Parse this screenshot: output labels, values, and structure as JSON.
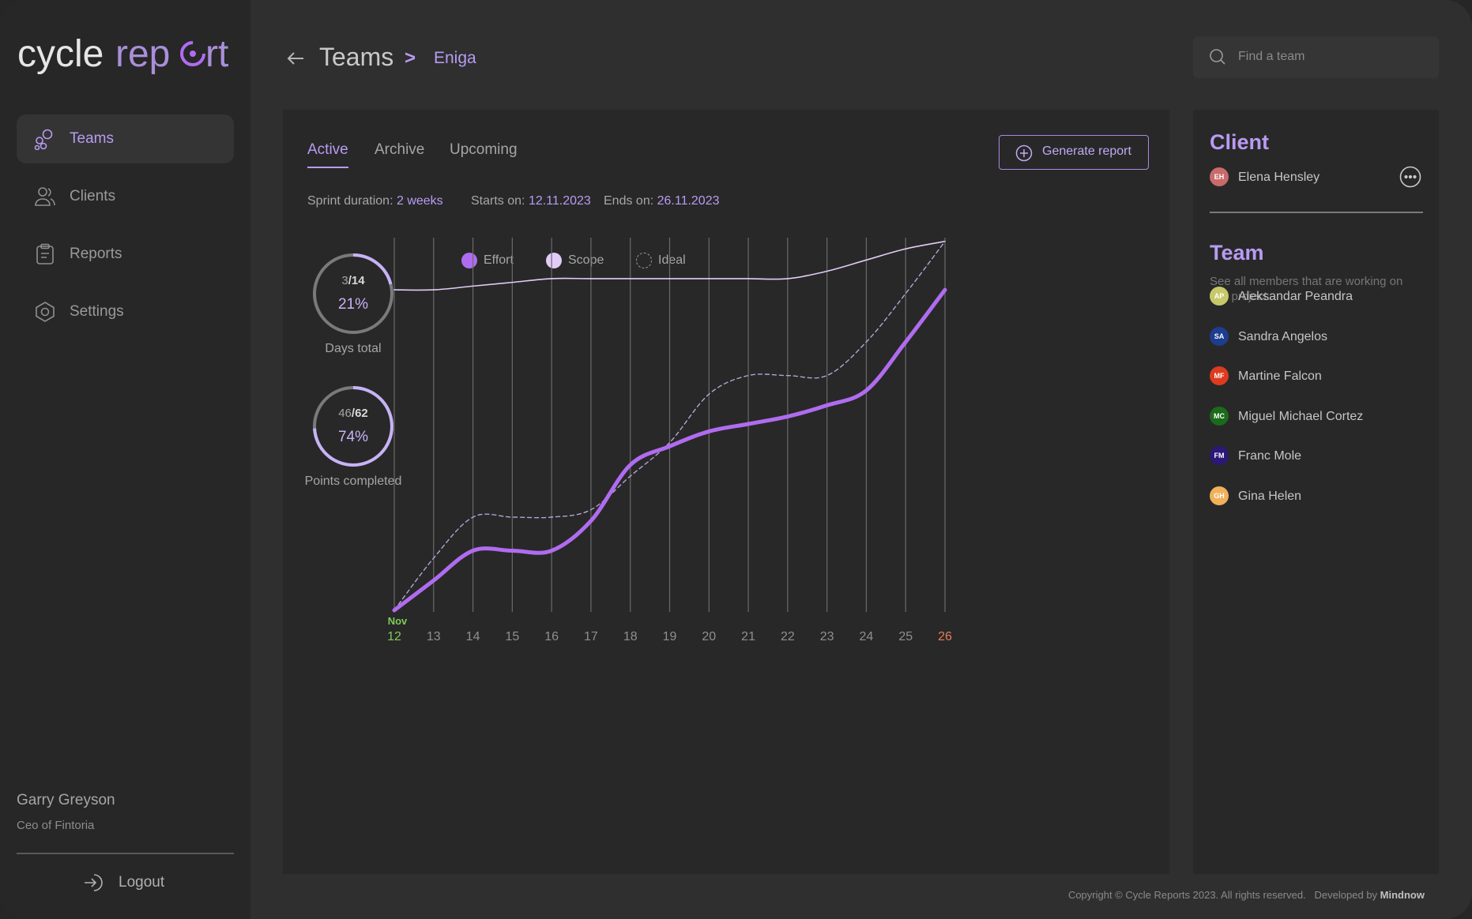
{
  "brand": {
    "logo_text_a": "cycle",
    "logo_text_b": "rep",
    "logo_text_c": "rt",
    "accent": "#b89bf2"
  },
  "sidebar": {
    "items": [
      {
        "label": "Teams",
        "icon": "teams-icon",
        "active": true
      },
      {
        "label": "Clients",
        "icon": "clients-icon",
        "active": false
      },
      {
        "label": "Reports",
        "icon": "reports-icon",
        "active": false
      },
      {
        "label": "Settings",
        "icon": "settings-icon",
        "active": false
      }
    ],
    "user": {
      "name": "Garry Greyson",
      "role": "Ceo of Fintoria"
    },
    "logout_label": "Logout"
  },
  "header": {
    "breadcrumb": [
      "Teams",
      "Eniga"
    ],
    "separator": ">",
    "search_placeholder": "Find a team"
  },
  "main": {
    "tabs": [
      {
        "label": "Active",
        "active": true
      },
      {
        "label": "Archive",
        "active": false
      },
      {
        "label": "Upcoming",
        "active": false
      }
    ],
    "generate_report_label": "Generate report",
    "sprint": {
      "duration_label": "Sprint duration:",
      "duration_value": "2 weeks",
      "start_label": "Starts on:",
      "start_value": "12.11.2023",
      "end_label": "Ends on:",
      "end_value": "26.11.2023"
    },
    "stats": [
      {
        "current": "3",
        "total": "/14",
        "percent": "21%",
        "fraction": 0.21,
        "caption": "Days total",
        "color": "#d9d9d9"
      },
      {
        "current": "46",
        "total": "/62",
        "percent": "74%",
        "fraction": 0.74,
        "caption": "Points completed",
        "color": "#c8b2f7"
      }
    ]
  },
  "chart_data": {
    "type": "line",
    "x": [
      "12",
      "13",
      "14",
      "15",
      "16",
      "17",
      "18",
      "19",
      "20",
      "21",
      "22",
      "23",
      "24",
      "25",
      "26"
    ],
    "month_label": "Nov",
    "start_tick_color": "#7ecb5a",
    "end_tick_color": "#e57d5a",
    "ylim": [
      0,
      100
    ],
    "series": [
      {
        "name": "Effort",
        "color": "#b06cf0",
        "values": [
          0,
          8,
          16,
          16,
          16,
          24,
          39,
          44,
          48,
          50,
          52,
          55,
          59,
          72,
          86
        ]
      },
      {
        "name": "Scope",
        "color": "#e2ccf7",
        "values": [
          86,
          86,
          87,
          88,
          89,
          89,
          89,
          89,
          89,
          89,
          89,
          91,
          94,
          97,
          99
        ]
      },
      {
        "name": "Ideal",
        "color": "#b4a3d8",
        "values": [
          0,
          14,
          25,
          25,
          25,
          27,
          36,
          45,
          58,
          63,
          63,
          63,
          72,
          85,
          99
        ]
      }
    ],
    "grid": true,
    "legend": "top-left"
  },
  "client": {
    "heading": "Client",
    "person": {
      "name": "Elena Hensley",
      "initials": "EH",
      "color": "#c96b6b"
    }
  },
  "team": {
    "heading": "Team",
    "description": "See all members that are working on this project.",
    "members": [
      {
        "name": "Aleksandar Peandra",
        "initials": "AP",
        "color": "#c6c86a"
      },
      {
        "name": "Sandra Angelos",
        "initials": "SA",
        "color": "#1e3d8f"
      },
      {
        "name": "Martine Falcon",
        "initials": "MF",
        "color": "#dd3b1f"
      },
      {
        "name": "Miguel Michael Cortez",
        "initials": "MC",
        "color": "#1b6b1b"
      },
      {
        "name": "Franc Mole",
        "initials": "FM",
        "color": "#2b1877"
      },
      {
        "name": "Gina Helen",
        "initials": "GH",
        "color": "#f0b15a"
      }
    ]
  },
  "footer": {
    "copyright": "Copyright © Cycle Reports 2023. All rights reserved.",
    "developed_label": "Developed by",
    "developer": "Mindnow"
  }
}
